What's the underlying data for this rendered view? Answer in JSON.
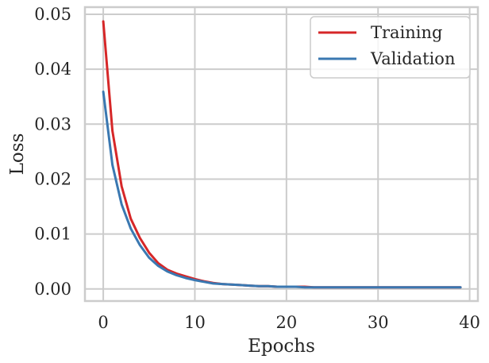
{
  "chart_data": {
    "type": "line",
    "xlabel": "Epochs",
    "ylabel": "Loss",
    "xlim": [
      -2,
      40.9
    ],
    "ylim": [
      -0.0022,
      0.0513
    ],
    "xticks": [
      0,
      10,
      20,
      30,
      40
    ],
    "xtick_labels": [
      "0",
      "10",
      "20",
      "30",
      "40"
    ],
    "yticks": [
      0.0,
      0.01,
      0.02,
      0.03,
      0.04,
      0.05
    ],
    "ytick_labels": [
      "0.00",
      "0.01",
      "0.02",
      "0.03",
      "0.04",
      "0.05"
    ],
    "grid": true,
    "legend_position": "top-right",
    "x": [
      0,
      1,
      2,
      3,
      4,
      5,
      6,
      7,
      8,
      9,
      10,
      11,
      12,
      13,
      14,
      15,
      16,
      17,
      18,
      19,
      20,
      21,
      22,
      23,
      24,
      25,
      26,
      27,
      28,
      29,
      30,
      31,
      32,
      33,
      34,
      35,
      36,
      37,
      38,
      39
    ],
    "series": [
      {
        "name": "Training",
        "color": "#d62728",
        "values": [
          0.0487,
          0.0288,
          0.0187,
          0.0128,
          0.0093,
          0.0066,
          0.0047,
          0.0035,
          0.0028,
          0.0023,
          0.0018,
          0.0014,
          0.0011,
          0.0009,
          0.0008,
          0.0007,
          0.0006,
          0.0005,
          0.0005,
          0.0004,
          0.0004,
          0.0004,
          0.0004,
          0.0003,
          0.0003,
          0.0003,
          0.0003,
          0.0003,
          0.0003,
          0.0003,
          0.0003,
          0.0003,
          0.0003,
          0.0003,
          0.0003,
          0.0003,
          0.0003,
          0.0003,
          0.0003,
          0.0003
        ]
      },
      {
        "name": "Validation",
        "color": "#3a78b1",
        "values": [
          0.0359,
          0.0226,
          0.0154,
          0.011,
          0.008,
          0.0057,
          0.0042,
          0.0032,
          0.0025,
          0.002,
          0.0016,
          0.0013,
          0.001,
          0.0009,
          0.0008,
          0.0007,
          0.0006,
          0.0005,
          0.0005,
          0.0004,
          0.0004,
          0.0004,
          0.0003,
          0.0003,
          0.0003,
          0.0003,
          0.0003,
          0.0003,
          0.0003,
          0.0003,
          0.0003,
          0.0003,
          0.0003,
          0.0003,
          0.0003,
          0.0003,
          0.0003,
          0.0003,
          0.0003,
          0.0003
        ]
      }
    ]
  }
}
